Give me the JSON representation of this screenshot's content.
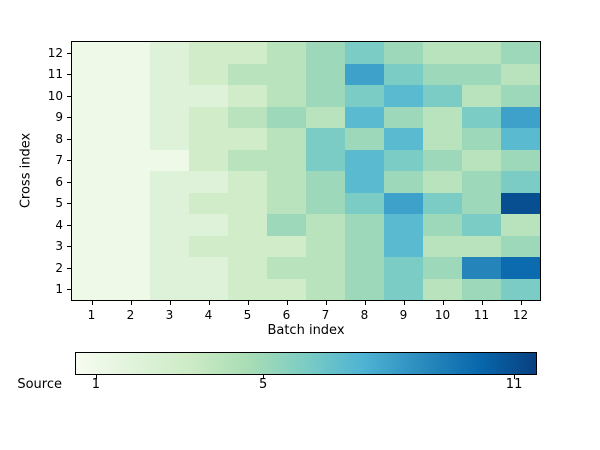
{
  "chart_data": {
    "type": "heatmap",
    "title": "",
    "xlabel": "Batch index",
    "ylabel": "Cross index",
    "x_ticks": [
      "1",
      "2",
      "3",
      "4",
      "5",
      "6",
      "7",
      "8",
      "9",
      "10",
      "11",
      "12"
    ],
    "y_ticks": [
      "1",
      "2",
      "3",
      "4",
      "5",
      "6",
      "7",
      "8",
      "9",
      "10",
      "11",
      "12"
    ],
    "vmin": 1,
    "vmax": 11,
    "grid": false,
    "colormap_name": "GnBu",
    "colormap_stops": [
      "#f7fcf0",
      "#e0f3db",
      "#ccebc5",
      "#a8ddb5",
      "#7bccc4",
      "#4eb3d3",
      "#2b8cbe",
      "#0868ac",
      "#084081"
    ],
    "values_note": "rows ordered by Cross index 1 (bottom) to 12 (top); columns by Batch index 1 to 12; values estimated from colormap",
    "values": [
      [
        1,
        1,
        2,
        2,
        3,
        3,
        4,
        5,
        6,
        4,
        5,
        6
      ],
      [
        1,
        1,
        2,
        2,
        3,
        4,
        4,
        5,
        6,
        5,
        9,
        10
      ],
      [
        1,
        1,
        2,
        3,
        3,
        3,
        4,
        5,
        7,
        4,
        4,
        5
      ],
      [
        1,
        1,
        2,
        2,
        3,
        5,
        4,
        5,
        7,
        5,
        6,
        4
      ],
      [
        1,
        1,
        2,
        3,
        3,
        4,
        5,
        6,
        8,
        6,
        5,
        11
      ],
      [
        1,
        1,
        2,
        2,
        3,
        4,
        5,
        7,
        5,
        4,
        5,
        6
      ],
      [
        1,
        1,
        1,
        3,
        4,
        4,
        6,
        7,
        6,
        5,
        4,
        5
      ],
      [
        1,
        1,
        2,
        3,
        3,
        4,
        6,
        5,
        7,
        4,
        5,
        7
      ],
      [
        1,
        1,
        2,
        3,
        4,
        5,
        4,
        7,
        5,
        4,
        6,
        8
      ],
      [
        1,
        1,
        2,
        2,
        3,
        4,
        5,
        6,
        7,
        6,
        4,
        5
      ],
      [
        1,
        1,
        2,
        3,
        4,
        4,
        5,
        8,
        6,
        5,
        5,
        4
      ],
      [
        1,
        1,
        2,
        3,
        3,
        4,
        5,
        6,
        5,
        4,
        4,
        5
      ]
    ],
    "colorbar": {
      "label": "Source",
      "orientation": "horizontal",
      "ticks": [
        1,
        5,
        11
      ],
      "tick_labels": [
        "1",
        "5",
        "11"
      ]
    }
  }
}
